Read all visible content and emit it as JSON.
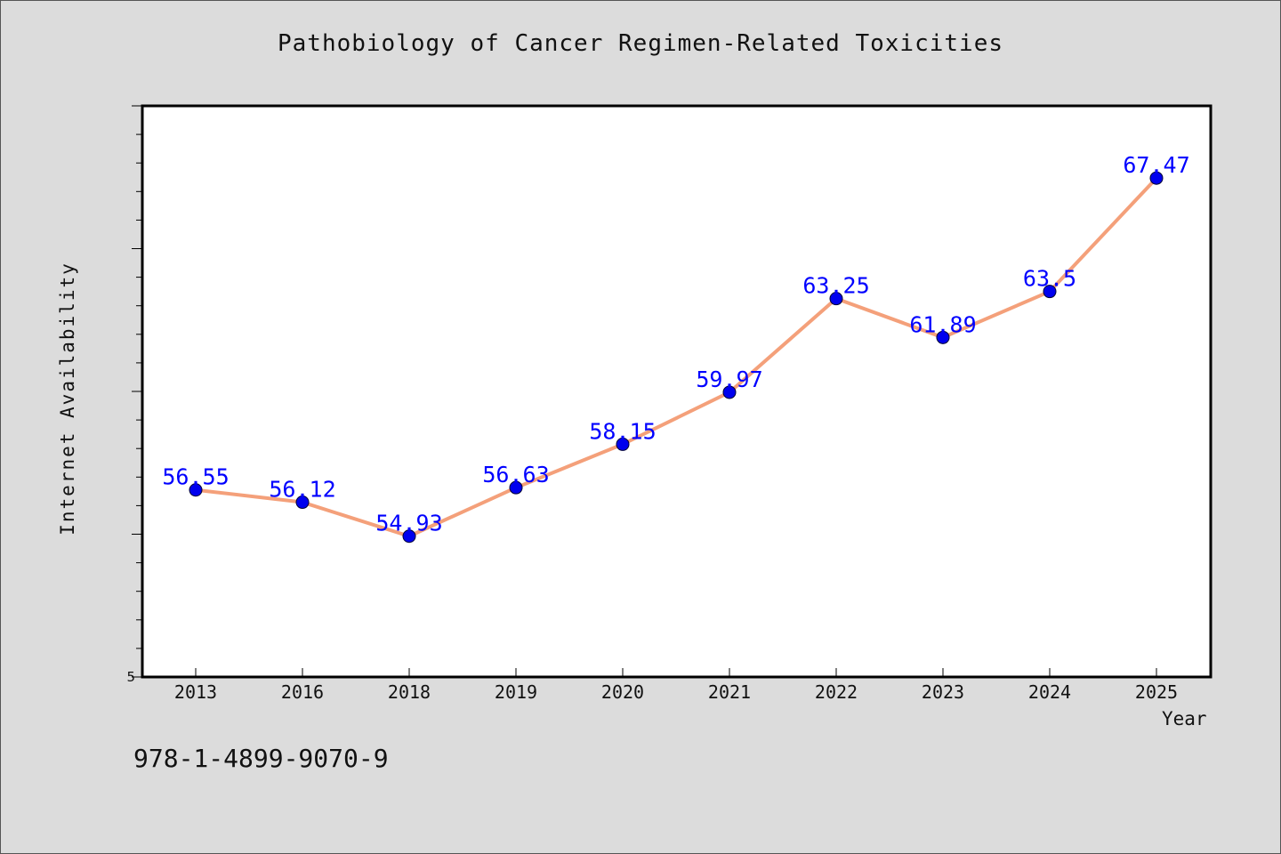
{
  "chart_data": {
    "type": "line",
    "title": "Pathobiology of Cancer Regimen-Related Toxicities",
    "xlabel": "Year",
    "ylabel": "Internet Availability",
    "categories": [
      "2013",
      "2016",
      "2018",
      "2019",
      "2020",
      "2021",
      "2022",
      "2023",
      "2024",
      "2025"
    ],
    "series": [
      {
        "values": [
          56.55,
          56.12,
          54.93,
          56.63,
          58.15,
          59.97,
          63.25,
          61.89,
          63.5,
          67.47
        ],
        "data_labels": [
          "56.55",
          "56.12",
          "54.93",
          "56.63",
          "58.15",
          "59.97",
          "63.25",
          "61.89",
          "63.5",
          "67.47"
        ]
      }
    ],
    "y_tick_labels": [
      "5"
    ],
    "ylim": [
      50,
      70
    ],
    "grid": false,
    "colors": {
      "line": "#f4a07a",
      "marker": "#0000ee",
      "data_label": "#0000ff",
      "plot_background": "#ffffff",
      "page_background": "#dcdcdc"
    }
  },
  "footnote": "978-1-4899-9070-9"
}
